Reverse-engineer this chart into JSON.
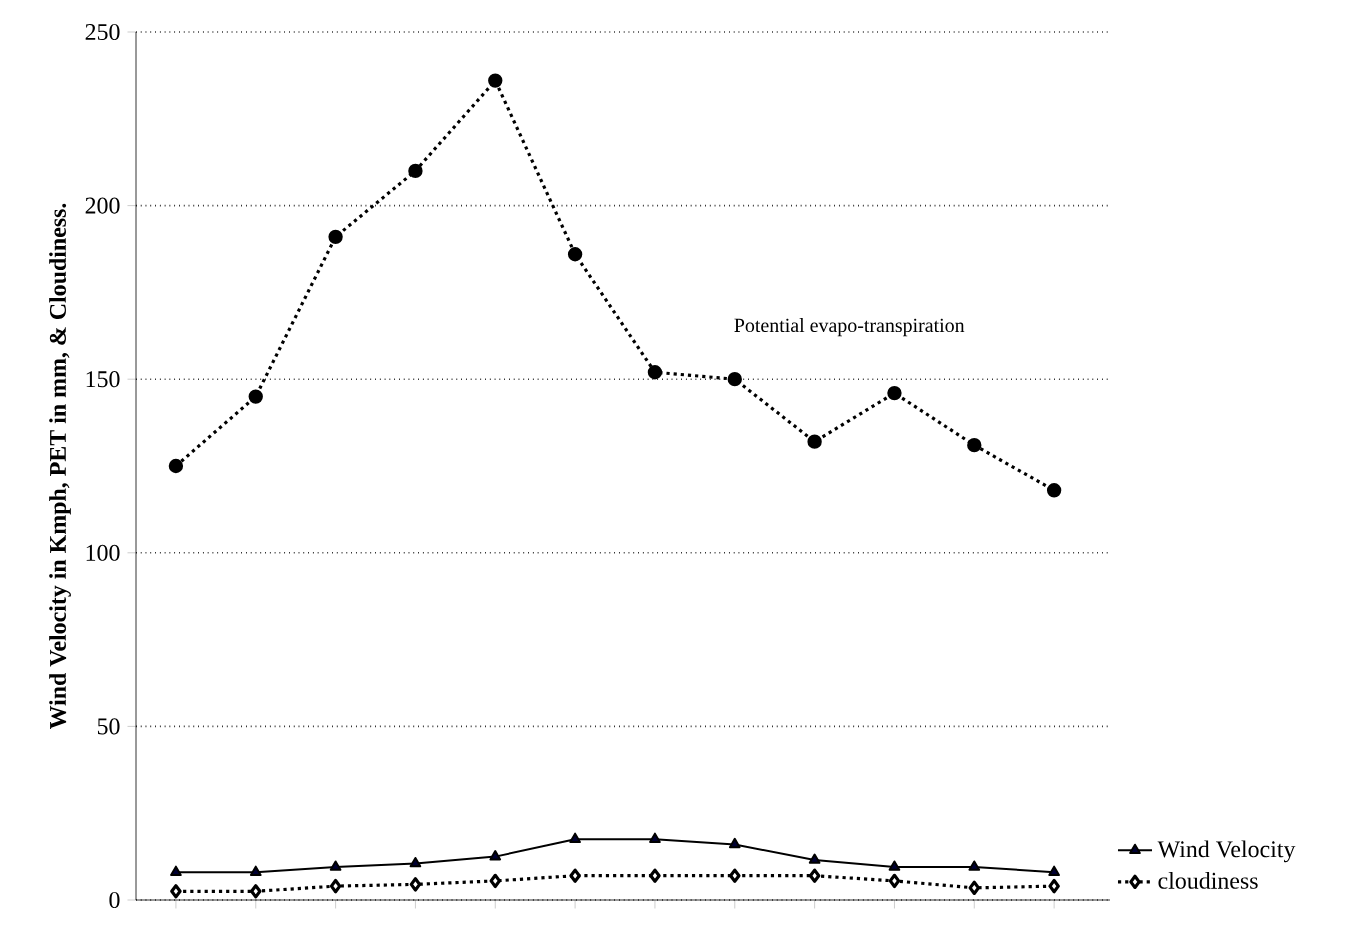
{
  "chart_data": {
    "type": "line",
    "ylabel": "Wind Velocity in Kmph, PET in mm, & Cloudiness.",
    "categories": [
      null,
      null,
      null,
      null,
      null,
      null,
      null,
      null,
      null,
      null,
      null,
      null
    ],
    "series": [
      {
        "name": "Potential evapo-transpiration",
        "color": "#000000",
        "marker": "circle",
        "line_style": "dotted",
        "values": [
          125,
          145,
          191,
          210,
          236,
          186,
          152,
          150,
          132,
          146,
          131,
          118
        ]
      },
      {
        "name": "Wind Velocity",
        "color": "#000000",
        "marker": "triangle",
        "line_style": "solid",
        "values": [
          8,
          8,
          9.5,
          10.5,
          12.5,
          17.5,
          17.5,
          16,
          11.5,
          9.5,
          9.5,
          8
        ]
      },
      {
        "name": "cloudiness",
        "color": "#000000",
        "marker": "diamond",
        "line_style": "dotted",
        "values": [
          2.5,
          2.5,
          4,
          4.5,
          5.5,
          7,
          7,
          7,
          7,
          5.5,
          3.5,
          4
        ]
      }
    ],
    "ylim": [
      0,
      250
    ],
    "yticks": [
      0,
      50,
      100,
      150,
      200,
      250
    ],
    "grid": "y",
    "legend": "bottom right"
  }
}
